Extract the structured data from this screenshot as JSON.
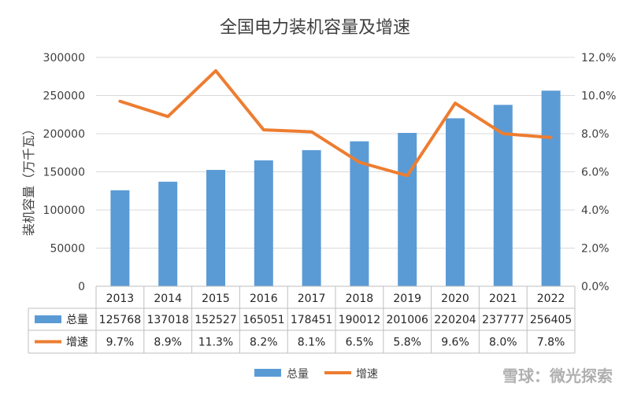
{
  "chart_data": {
    "type": "bar",
    "title": "全国电力装机容量及增速",
    "ylabel": "装机容量（万千瓦）",
    "categories": [
      "2013",
      "2014",
      "2015",
      "2016",
      "2017",
      "2018",
      "2019",
      "2020",
      "2021",
      "2022"
    ],
    "series": [
      {
        "name": "总量",
        "type": "bar",
        "axis": "left",
        "color": "#5b9bd5",
        "values": [
          125768,
          137018,
          152527,
          165051,
          178451,
          190012,
          201006,
          220204,
          237777,
          256405
        ]
      },
      {
        "name": "增速",
        "type": "line",
        "axis": "right",
        "color": "#ed7d31",
        "values": [
          9.7,
          8.9,
          11.3,
          8.2,
          8.1,
          6.5,
          5.8,
          9.6,
          8.0,
          7.8
        ],
        "labels": [
          "9.7%",
          "8.9%",
          "11.3%",
          "8.2%",
          "8.1%",
          "6.5%",
          "5.8%",
          "9.6%",
          "8.0%",
          "7.8%"
        ]
      }
    ],
    "ylim_left": [
      0,
      300000
    ],
    "yticks_left": [
      "0",
      "50000",
      "100000",
      "150000",
      "200000",
      "250000",
      "300000"
    ],
    "ylim_right": [
      0,
      12
    ],
    "yticks_right": [
      "0.0%",
      "2.0%",
      "4.0%",
      "6.0%",
      "8.0%",
      "10.0%",
      "12.0%"
    ],
    "grid": true,
    "data_table": true,
    "legend_position": "bottom"
  },
  "watermark": "雪球：微光探索"
}
